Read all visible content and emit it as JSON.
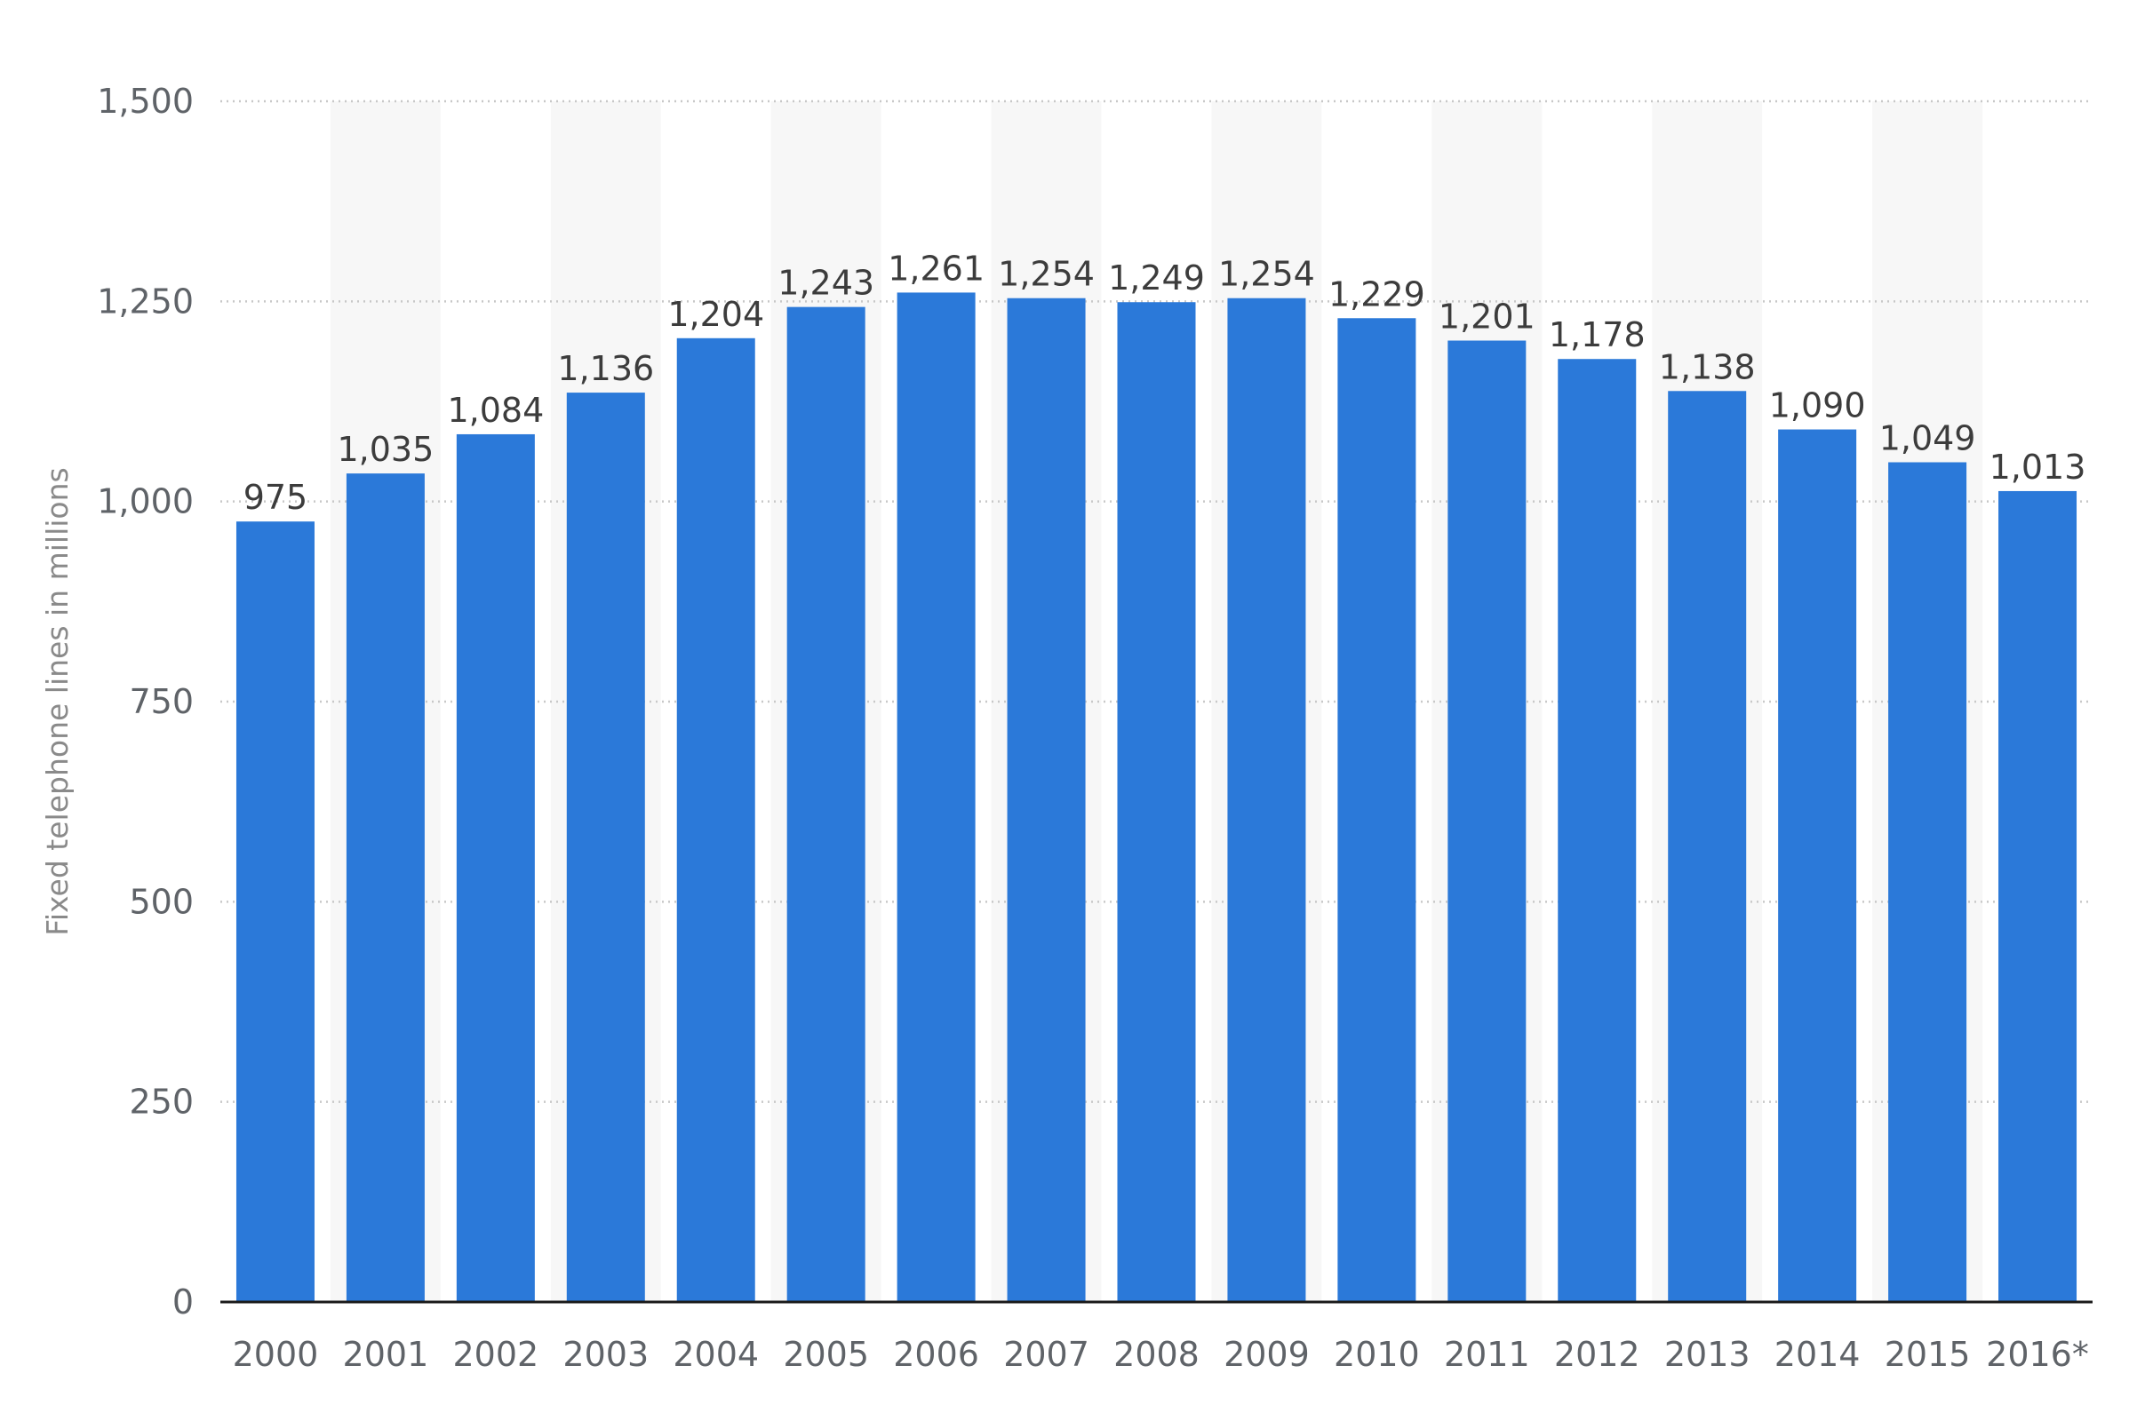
{
  "chart_data": {
    "type": "bar",
    "title": "",
    "xlabel": "",
    "ylabel": "Fixed telephone lines in millions",
    "ylim": [
      0,
      1500
    ],
    "yticks": [
      0,
      250,
      500,
      750,
      1000,
      1250,
      1500
    ],
    "ytick_labels": [
      "0",
      "250",
      "500",
      "750",
      "1,000",
      "1,250",
      "1,500"
    ],
    "grid": true,
    "legend": "none",
    "categories": [
      "2000",
      "2001",
      "2002",
      "2003",
      "2004",
      "2005",
      "2006",
      "2007",
      "2008",
      "2009",
      "2010",
      "2011",
      "2012",
      "2013",
      "2014",
      "2015",
      "2016*"
    ],
    "values": [
      975,
      1035,
      1084,
      1136,
      1204,
      1243,
      1261,
      1254,
      1249,
      1254,
      1229,
      1201,
      1178,
      1138,
      1090,
      1049,
      1013
    ],
    "value_labels": [
      "975",
      "1,035",
      "1,084",
      "1,136",
      "1,204",
      "1,243",
      "1,261",
      "1,254",
      "1,249",
      "1,254",
      "1,229",
      "1,201",
      "1,178",
      "1,138",
      "1,090",
      "1,049",
      "1,013"
    ],
    "colors": {
      "bar": "#2b79d9",
      "alt_band": "#f7f7f7",
      "grid": "#c8c8c8",
      "axis": "#1a1a1a"
    }
  }
}
